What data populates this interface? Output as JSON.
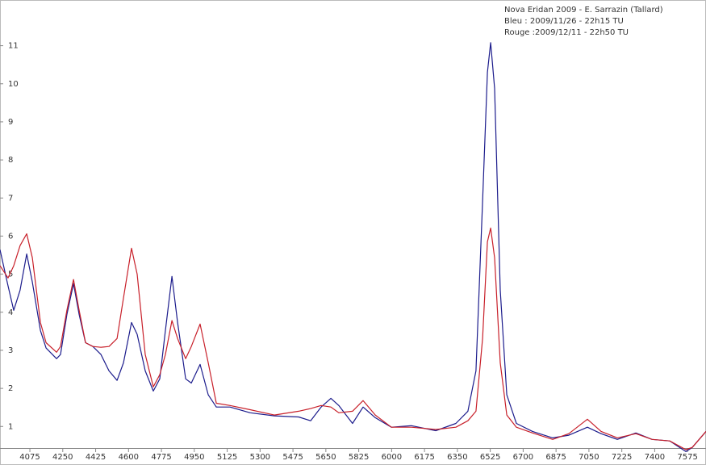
{
  "chart_data": {
    "type": "line",
    "title": "Nova Eridan 2009 - E. Sarrazin (Tallard)",
    "x": [
      3916,
      3959,
      3989,
      4023,
      4058,
      4088,
      4131,
      4161,
      4217,
      4238,
      4272,
      4307,
      4337,
      4371,
      4410,
      4453,
      4496,
      4539,
      4573,
      4616,
      4646,
      4689,
      4732,
      4766,
      4796,
      4831,
      4861,
      4904,
      4934,
      4981,
      5024,
      5067,
      5140,
      5247,
      5376,
      5505,
      5569,
      5625,
      5677,
      5719,
      5792,
      5848,
      5913,
      5999,
      6106,
      6235,
      6342,
      6406,
      6449,
      6484,
      6510,
      6527,
      6548,
      6578,
      6613,
      6664,
      6750,
      6857,
      6943,
      7042,
      7115,
      7201,
      7300,
      7386,
      7480,
      7566,
      7600,
      7673
    ],
    "series": [
      {
        "name": "Bleu : 2009/11/26 - 22h15 TU",
        "color": "#1c1c8c",
        "values": [
          5.64,
          4.69,
          4.05,
          4.58,
          5.53,
          4.79,
          3.52,
          3.06,
          2.78,
          2.89,
          3.94,
          4.75,
          3.94,
          3.2,
          3.1,
          2.89,
          2.46,
          2.21,
          2.67,
          3.73,
          3.42,
          2.46,
          1.93,
          2.25,
          3.52,
          4.94,
          3.73,
          2.25,
          2.14,
          2.63,
          1.83,
          1.51,
          1.51,
          1.36,
          1.28,
          1.25,
          1.15,
          1.51,
          1.74,
          1.55,
          1.08,
          1.51,
          1.23,
          0.98,
          1.02,
          0.89,
          1.08,
          1.4,
          2.46,
          6.91,
          10.3,
          11.08,
          9.88,
          4.58,
          1.83,
          1.08,
          0.87,
          0.7,
          0.77,
          0.98,
          0.81,
          0.66,
          0.83,
          0.66,
          0.62,
          0.34,
          0.45,
          0.87
        ]
      },
      {
        "name": "Rouge :2009/12/11 - 22h50 TU",
        "color": "#c8202a",
        "values": [
          5.22,
          4.9,
          5.22,
          5.75,
          6.06,
          5.43,
          3.73,
          3.2,
          2.95,
          3.1,
          4.05,
          4.86,
          4.05,
          3.2,
          3.1,
          3.08,
          3.1,
          3.31,
          4.37,
          5.68,
          5.0,
          2.89,
          2.04,
          2.36,
          2.89,
          3.78,
          3.31,
          2.78,
          3.1,
          3.69,
          2.67,
          1.61,
          1.55,
          1.44,
          1.3,
          1.4,
          1.47,
          1.55,
          1.51,
          1.36,
          1.4,
          1.68,
          1.3,
          0.98,
          0.98,
          0.92,
          0.98,
          1.15,
          1.4,
          3.31,
          5.85,
          6.21,
          5.43,
          2.67,
          1.3,
          0.98,
          0.83,
          0.66,
          0.81,
          1.19,
          0.87,
          0.7,
          0.81,
          0.66,
          0.62,
          0.39,
          0.45,
          0.87
        ]
      }
    ],
    "xlim": [
      3916,
      7673
    ],
    "xticks": [
      4075,
      4250,
      4425,
      4600,
      4775,
      4950,
      5125,
      5300,
      5475,
      5650,
      5825,
      6000,
      6175,
      6350,
      6525,
      6700,
      6875,
      7050,
      7225,
      7400,
      7575
    ],
    "ylim": [
      0.2,
      12.2
    ],
    "yticks": [
      1,
      2,
      3,
      4,
      5,
      6,
      7,
      8,
      9,
      10,
      11
    ]
  }
}
